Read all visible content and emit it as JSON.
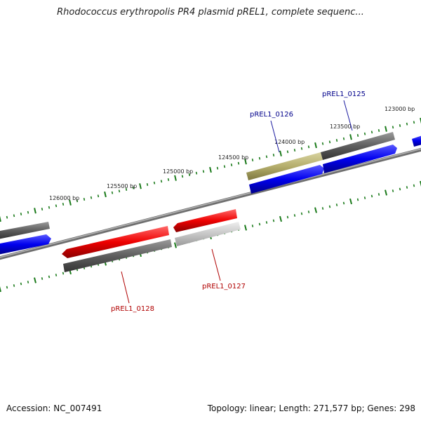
{
  "title": "Rhodococcus erythropolis PR4 plasmid pREL1, complete sequenc...",
  "footer": {
    "accession": "Accession: NC_007491",
    "summary": "Topology: linear; Length: 271,577 bp; Genes: 298"
  },
  "colors": {
    "forward_gene": "#0000ee",
    "reverse_gene": "#ee0000",
    "feature_dark": "#5e5e5e",
    "feature_light": "#c6c6c6",
    "feature_highlight": "#b5ae6c",
    "tick": "#1a7a1a",
    "backbone": "#8a8a8a",
    "label_forward": "#00008b",
    "label_reverse": "#b00000"
  },
  "ticks": [
    {
      "label": "126000 bp"
    },
    {
      "label": "125500 bp"
    },
    {
      "label": "125000 bp"
    },
    {
      "label": "124500 bp"
    },
    {
      "label": "124000 bp"
    },
    {
      "label": "123500 bp"
    },
    {
      "label": "123000 bp"
    }
  ],
  "genes": [
    {
      "id": "pREL1_0125",
      "strand": "forward"
    },
    {
      "id": "pREL1_0126",
      "strand": "forward"
    },
    {
      "id": "pREL1_0127",
      "strand": "reverse"
    },
    {
      "id": "pREL1_0128",
      "strand": "reverse"
    }
  ]
}
